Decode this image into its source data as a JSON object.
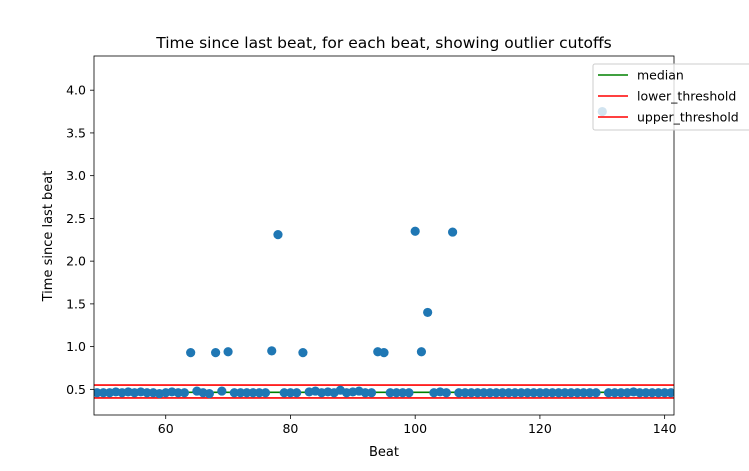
{
  "chart_data": {
    "type": "scatter",
    "title": "Time since last beat, for each beat, showing outlier cutoffs",
    "xlabel": "Beat",
    "ylabel": "Time since last beat",
    "xlim": [
      48.5,
      141.5
    ],
    "ylim": [
      0.2,
      4.4
    ],
    "xticks": [
      60,
      80,
      100,
      120,
      140
    ],
    "xtick_labels": [
      "60",
      "80",
      "100",
      "120",
      "140"
    ],
    "yticks": [
      0.5,
      1.0,
      1.5,
      2.0,
      2.5,
      3.0,
      3.5,
      4.0
    ],
    "ytick_labels": [
      "0.5",
      "1.0",
      "1.5",
      "2.0",
      "2.5",
      "3.0",
      "3.5",
      "4.0"
    ],
    "grid": false,
    "legend_position": "upper-right",
    "legend": [
      {
        "label": "median",
        "color": "#008000"
      },
      {
        "label": "lower_threshold",
        "color": "#ff0000"
      },
      {
        "label": "upper_threshold",
        "color": "#ff0000"
      }
    ],
    "hlines": [
      {
        "name": "median",
        "y": 0.465,
        "color": "#008000"
      },
      {
        "name": "lower_threshold",
        "y": 0.4,
        "color": "#ff0000"
      },
      {
        "name": "upper_threshold",
        "y": 0.55,
        "color": "#ff0000"
      }
    ],
    "marker_color": "#1f77b4",
    "points": [
      {
        "x": 49,
        "y": 0.46
      },
      {
        "x": 50,
        "y": 0.46
      },
      {
        "x": 51,
        "y": 0.46
      },
      {
        "x": 52,
        "y": 0.47
      },
      {
        "x": 53,
        "y": 0.46
      },
      {
        "x": 54,
        "y": 0.47
      },
      {
        "x": 55,
        "y": 0.46
      },
      {
        "x": 56,
        "y": 0.47
      },
      {
        "x": 57,
        "y": 0.46
      },
      {
        "x": 58,
        "y": 0.46
      },
      {
        "x": 59,
        "y": 0.45
      },
      {
        "x": 60,
        "y": 0.46
      },
      {
        "x": 61,
        "y": 0.47
      },
      {
        "x": 62,
        "y": 0.46
      },
      {
        "x": 63,
        "y": 0.46
      },
      {
        "x": 64,
        "y": 0.93
      },
      {
        "x": 65,
        "y": 0.48
      },
      {
        "x": 66,
        "y": 0.46
      },
      {
        "x": 67,
        "y": 0.45
      },
      {
        "x": 68,
        "y": 0.93
      },
      {
        "x": 69,
        "y": 0.48
      },
      {
        "x": 70,
        "y": 0.94
      },
      {
        "x": 71,
        "y": 0.46
      },
      {
        "x": 72,
        "y": 0.46
      },
      {
        "x": 73,
        "y": 0.46
      },
      {
        "x": 74,
        "y": 0.46
      },
      {
        "x": 75,
        "y": 0.46
      },
      {
        "x": 76,
        "y": 0.46
      },
      {
        "x": 77,
        "y": 0.95
      },
      {
        "x": 78,
        "y": 2.31
      },
      {
        "x": 79,
        "y": 0.46
      },
      {
        "x": 80,
        "y": 0.46
      },
      {
        "x": 81,
        "y": 0.46
      },
      {
        "x": 82,
        "y": 0.93
      },
      {
        "x": 83,
        "y": 0.47
      },
      {
        "x": 84,
        "y": 0.48
      },
      {
        "x": 85,
        "y": 0.46
      },
      {
        "x": 86,
        "y": 0.47
      },
      {
        "x": 87,
        "y": 0.46
      },
      {
        "x": 88,
        "y": 0.49
      },
      {
        "x": 89,
        "y": 0.46
      },
      {
        "x": 90,
        "y": 0.47
      },
      {
        "x": 91,
        "y": 0.48
      },
      {
        "x": 92,
        "y": 0.46
      },
      {
        "x": 93,
        "y": 0.46
      },
      {
        "x": 94,
        "y": 0.94
      },
      {
        "x": 95,
        "y": 0.93
      },
      {
        "x": 96,
        "y": 0.46
      },
      {
        "x": 97,
        "y": 0.46
      },
      {
        "x": 98,
        "y": 0.46
      },
      {
        "x": 99,
        "y": 0.46
      },
      {
        "x": 100,
        "y": 2.35
      },
      {
        "x": 101,
        "y": 0.94
      },
      {
        "x": 102,
        "y": 1.4
      },
      {
        "x": 103,
        "y": 0.46
      },
      {
        "x": 104,
        "y": 0.47
      },
      {
        "x": 105,
        "y": 0.46
      },
      {
        "x": 106,
        "y": 2.34
      },
      {
        "x": 107,
        "y": 0.46
      },
      {
        "x": 108,
        "y": 0.46
      },
      {
        "x": 109,
        "y": 0.46
      },
      {
        "x": 110,
        "y": 0.46
      },
      {
        "x": 111,
        "y": 0.46
      },
      {
        "x": 112,
        "y": 0.46
      },
      {
        "x": 113,
        "y": 0.46
      },
      {
        "x": 114,
        "y": 0.46
      },
      {
        "x": 115,
        "y": 0.46
      },
      {
        "x": 116,
        "y": 0.46
      },
      {
        "x": 117,
        "y": 0.46
      },
      {
        "x": 118,
        "y": 0.46
      },
      {
        "x": 119,
        "y": 0.46
      },
      {
        "x": 120,
        "y": 0.46
      },
      {
        "x": 121,
        "y": 0.46
      },
      {
        "x": 122,
        "y": 0.46
      },
      {
        "x": 123,
        "y": 0.46
      },
      {
        "x": 124,
        "y": 0.46
      },
      {
        "x": 125,
        "y": 0.46
      },
      {
        "x": 126,
        "y": 0.46
      },
      {
        "x": 127,
        "y": 0.46
      },
      {
        "x": 128,
        "y": 0.46
      },
      {
        "x": 129,
        "y": 0.46
      },
      {
        "x": 130,
        "y": 3.75
      },
      {
        "x": 131,
        "y": 0.46
      },
      {
        "x": 132,
        "y": 0.46
      },
      {
        "x": 133,
        "y": 0.46
      },
      {
        "x": 134,
        "y": 0.46
      },
      {
        "x": 135,
        "y": 0.47
      },
      {
        "x": 136,
        "y": 0.46
      },
      {
        "x": 137,
        "y": 0.46
      },
      {
        "x": 138,
        "y": 0.46
      },
      {
        "x": 139,
        "y": 0.46
      },
      {
        "x": 140,
        "y": 0.46
      },
      {
        "x": 141,
        "y": 0.46
      }
    ]
  }
}
